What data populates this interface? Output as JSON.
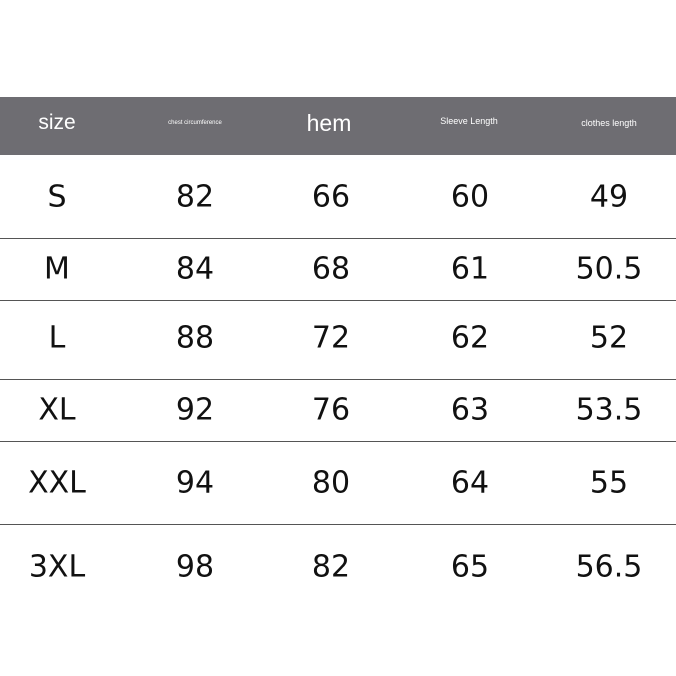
{
  "headers": [
    "size",
    "chest circumference",
    "hem",
    "Sleeve Length",
    "clothes length"
  ],
  "rows": [
    [
      "S",
      "82",
      "66",
      "60",
      "49"
    ],
    [
      "M",
      "84",
      "68",
      "61",
      "50.5"
    ],
    [
      "L",
      "88",
      "72",
      "62",
      "52"
    ],
    [
      "XL",
      "92",
      "76",
      "63",
      "53.5"
    ],
    [
      "XXL",
      "94",
      "80",
      "64",
      "55"
    ],
    [
      "3XL",
      "98",
      "82",
      "65",
      "56.5"
    ]
  ],
  "colors": {
    "header_bg": "#6e6d72",
    "header_text": "#ffffff",
    "divider": "#555555"
  }
}
